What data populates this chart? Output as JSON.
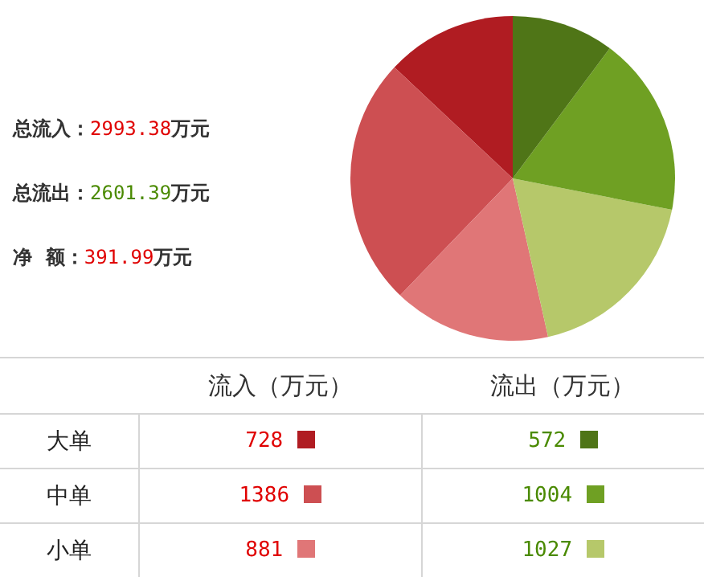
{
  "chart_data": [
    {
      "type": "pie",
      "categories": [
        null,
        null,
        null,
        null,
        null,
        null
      ],
      "values": [
        13.0,
        24.8,
        15.7,
        18.4,
        17.9,
        10.2
      ],
      "colors": [
        "#b01c22",
        "#cd4f52",
        "#e07677",
        "#b6c86a",
        "#6fa023",
        "#4f7517"
      ],
      "annotations": [
        "总流入：2993.38万元",
        "总流出：2601.39万元",
        "净  额：391.99万元"
      ]
    },
    {
      "type": "other",
      "annotations": [
        "流入（万元）",
        "流出（万元）",
        "大单",
        "728",
        "572",
        "中单",
        "1386",
        "1004",
        "小单",
        "881",
        "1027"
      ]
    }
  ]
}
